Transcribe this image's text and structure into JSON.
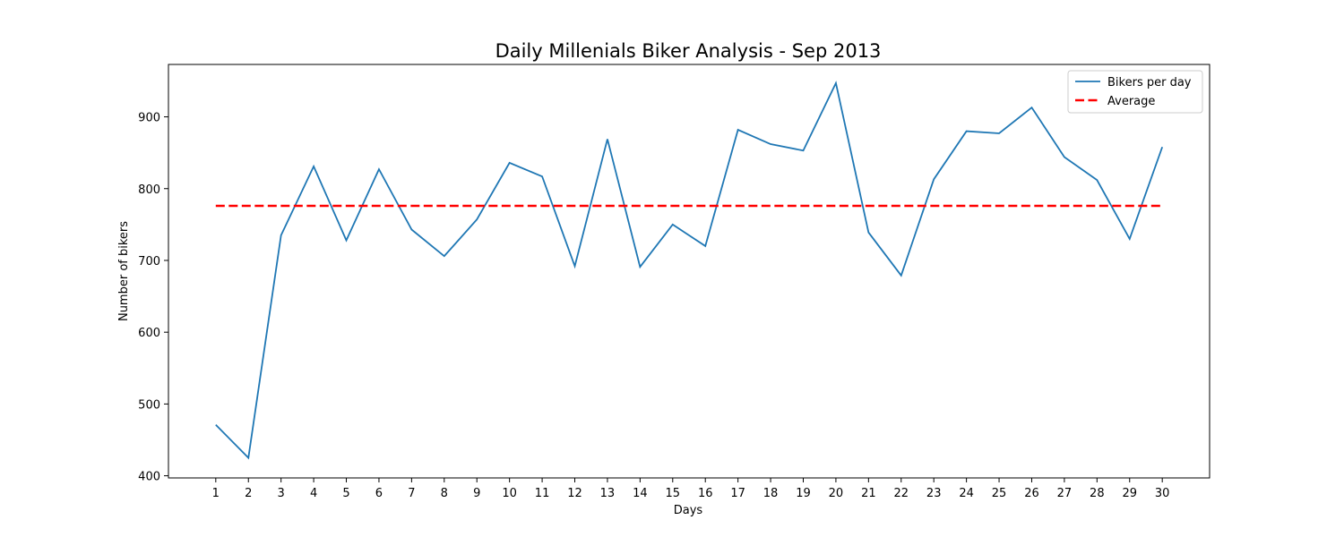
{
  "chart_data": {
    "type": "line",
    "title": "Daily Millenials Biker Analysis - Sep 2013",
    "xlabel": "Days",
    "ylabel": "Number of bikers",
    "x": [
      1,
      2,
      3,
      4,
      5,
      6,
      7,
      8,
      9,
      10,
      11,
      12,
      13,
      14,
      15,
      16,
      17,
      18,
      19,
      20,
      21,
      22,
      23,
      24,
      25,
      26,
      27,
      28,
      29,
      30
    ],
    "xlim": [
      -0.45,
      31.45
    ],
    "ylim": [
      397,
      973
    ],
    "yticks": [
      400,
      500,
      600,
      700,
      800,
      900
    ],
    "grid": false,
    "legend_position": "top-right",
    "series": [
      {
        "name": "Bikers per day",
        "color": "#1f77b4",
        "style": "solid",
        "values": [
          471,
          425,
          735,
          831,
          728,
          827,
          743,
          706,
          757,
          836,
          817,
          692,
          869,
          691,
          750,
          720,
          882,
          862,
          853,
          947,
          739,
          679,
          813,
          880,
          877,
          913,
          844,
          812,
          730,
          858
        ]
      },
      {
        "name": "Average",
        "color": "#ff0000",
        "style": "dashed",
        "values": [
          776,
          776,
          776,
          776,
          776,
          776,
          776,
          776,
          776,
          776,
          776,
          776,
          776,
          776,
          776,
          776,
          776,
          776,
          776,
          776,
          776,
          776,
          776,
          776,
          776,
          776,
          776,
          776,
          776,
          776
        ]
      }
    ]
  }
}
